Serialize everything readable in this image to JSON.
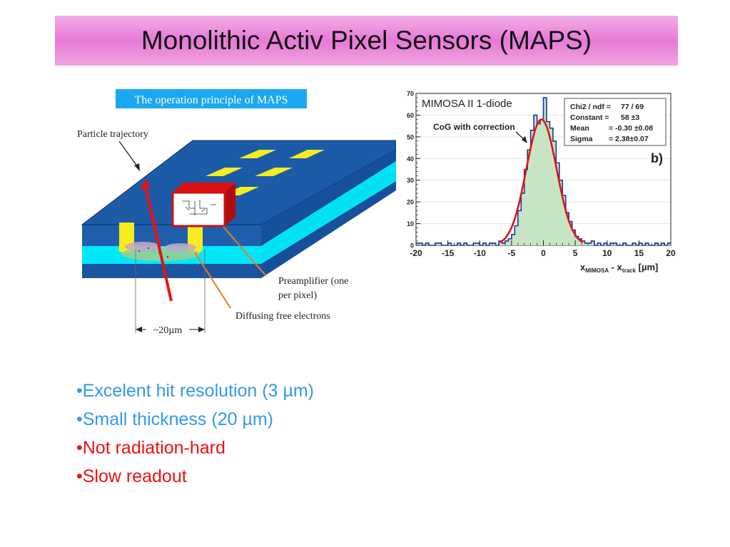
{
  "slide": {
    "title": "Monolithic Activ Pixel Sensors (MAPS)"
  },
  "maps_figure": {
    "caption": "The operation principle of MAPS",
    "labels": {
      "particle": "Particle trajectory",
      "preamp_line1": "Preamplifier (one",
      "preamp_line2": "per pixel)",
      "electrons": "Diffusing free electrons",
      "pitch": "~20µm"
    },
    "colors": {
      "substrate_blue": "#1a57a6",
      "epi_cyan": "#00e8f8",
      "pixel_yellow": "#f8ec20",
      "trajectory_red": "#ee1111",
      "leader_orange": "#ef7a16"
    }
  },
  "histogram": {
    "title": "MIMOSA II 1-diode",
    "annotation": "CoG with correction",
    "panel_tag": "b)",
    "stats": [
      {
        "label": "Chi2 / ndf =",
        "value": "77 / 69"
      },
      {
        "label": "Constant =",
        "value": "58  ±3"
      },
      {
        "label": "Mean",
        "value": "= -0.30 ±0.08"
      },
      {
        "label": "Sigma",
        "value": "=  2.38±0.07"
      }
    ],
    "xlabel_main": "x",
    "xlabel_sub1": "MIMOSA",
    "xlabel_mid": " - x",
    "xlabel_sub2": "track",
    "xlabel_unit": " [µm]"
  },
  "chart_data": {
    "type": "bar",
    "title": "MIMOSA II 1-diode",
    "xlabel": "x MIMOSA - x track [µm]",
    "ylabel": "",
    "xlim": [
      -20,
      20
    ],
    "ylim": [
      0,
      70
    ],
    "xticks": [
      -20,
      -15,
      -10,
      -5,
      0,
      5,
      10,
      15,
      20
    ],
    "yticks": [
      0,
      10,
      20,
      30,
      40,
      50,
      60,
      70
    ],
    "bin_width": 0.5,
    "x": [
      -20,
      -19.5,
      -19,
      -18.5,
      -18,
      -17.5,
      -17,
      -16.5,
      -16,
      -15.5,
      -15,
      -14.5,
      -14,
      -13.5,
      -13,
      -12.5,
      -12,
      -11.5,
      -11,
      -10.5,
      -10,
      -9.5,
      -9,
      -8.5,
      -8,
      -7.5,
      -7,
      -6.5,
      -6,
      -5.5,
      -5,
      -4.5,
      -4,
      -3.5,
      -3,
      -2.5,
      -2,
      -1.5,
      -1,
      -0.5,
      0,
      0.5,
      1,
      1.5,
      2,
      2.5,
      3,
      3.5,
      4,
      4.5,
      5,
      5.5,
      6,
      6.5,
      7,
      7.5,
      8,
      8.5,
      9,
      9.5,
      10,
      10.5,
      11,
      11.5,
      12,
      12.5,
      13,
      13.5,
      14,
      14.5,
      15,
      15.5,
      16,
      16.5,
      17,
      17.5,
      18,
      18.5,
      19,
      19.5
    ],
    "values": [
      1,
      1,
      0,
      1,
      0,
      0,
      1,
      1,
      0,
      0,
      1,
      0,
      0,
      1,
      0,
      1,
      0,
      0,
      1,
      1,
      0,
      1,
      0,
      1,
      1,
      0,
      2,
      1,
      2,
      3,
      5,
      9,
      16,
      24,
      35,
      44,
      53,
      60,
      56,
      58,
      68,
      57,
      54,
      48,
      38,
      30,
      23,
      15,
      11,
      7,
      4,
      3,
      2,
      1,
      1,
      2,
      0,
      1,
      0,
      1,
      0,
      1,
      1,
      0,
      0,
      1,
      0,
      0,
      1,
      0,
      1,
      0,
      1,
      0,
      0,
      1,
      0,
      1,
      0,
      1
    ],
    "fit": {
      "type": "gaussian",
      "constant": 58,
      "mean": -0.3,
      "sigma": 2.38
    },
    "colors": {
      "bars": "#c6e3c3",
      "outline": "#1f33a0",
      "fit": "#e01515"
    }
  },
  "bullets": [
    {
      "text": "•Excelent hit resolution (3 µm)",
      "color": "#3399ee"
    },
    {
      "text": "•Small thickness (20 µm)",
      "color": "#3399ee"
    },
    {
      "text": "•Not radiation-hard",
      "color": "#ee1111"
    },
    {
      "text": "•Slow readout",
      "color": "#ee1111"
    }
  ]
}
